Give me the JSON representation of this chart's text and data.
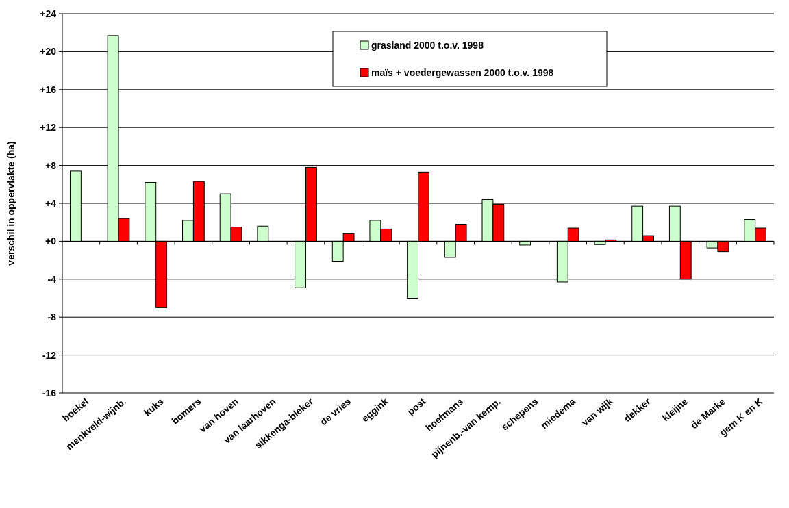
{
  "chart_data": {
    "type": "bar",
    "ylabel": "verschil in oppervlakte (ha)",
    "categories": [
      "boekel",
      "menkveld-wijnb.",
      "kuks",
      "bomers",
      "van hoven",
      "van laarhoven",
      "sikkenga-bleker",
      "de vries",
      "eggink",
      "post",
      "hoefmans",
      "pijnenb.-van kemp.",
      "schepens",
      "miedema",
      "van wijk",
      "dekker",
      "kleijne",
      "de Marke",
      "gem K en K"
    ],
    "series": [
      {
        "name": "grasland 2000 t.o.v. 1998",
        "color": "#ccffcc",
        "values": [
          7.4,
          21.7,
          6.2,
          2.2,
          5.0,
          1.6,
          -4.9,
          -2.1,
          2.2,
          -6.0,
          -1.7,
          4.4,
          -0.4,
          -4.3,
          -0.35,
          3.7,
          3.7,
          -0.7,
          2.3
        ]
      },
      {
        "name": "maïs + voedergewassen 2000 t.o.v. 1998",
        "color": "#ff0000",
        "values": [
          null,
          2.4,
          -7.0,
          6.3,
          1.5,
          null,
          7.8,
          0.8,
          1.3,
          7.3,
          1.8,
          3.9,
          null,
          1.4,
          0.15,
          0.6,
          -4.0,
          -1.1,
          1.4
        ]
      }
    ],
    "ylim": [
      -16,
      24
    ],
    "yticks": [
      {
        "value": -16,
        "label": "-16"
      },
      {
        "value": -12,
        "label": "-12"
      },
      {
        "value": -8,
        "label": "-8"
      },
      {
        "value": -4,
        "label": "-4"
      },
      {
        "value": 0,
        "label": "+0"
      },
      {
        "value": 4,
        "label": "+4"
      },
      {
        "value": 8,
        "label": "+8"
      },
      {
        "value": 12,
        "label": "+12"
      },
      {
        "value": 16,
        "label": "+16"
      },
      {
        "value": 20,
        "label": "+20"
      },
      {
        "value": 24,
        "label": "+24"
      }
    ],
    "grid": "y",
    "legend": "top"
  }
}
